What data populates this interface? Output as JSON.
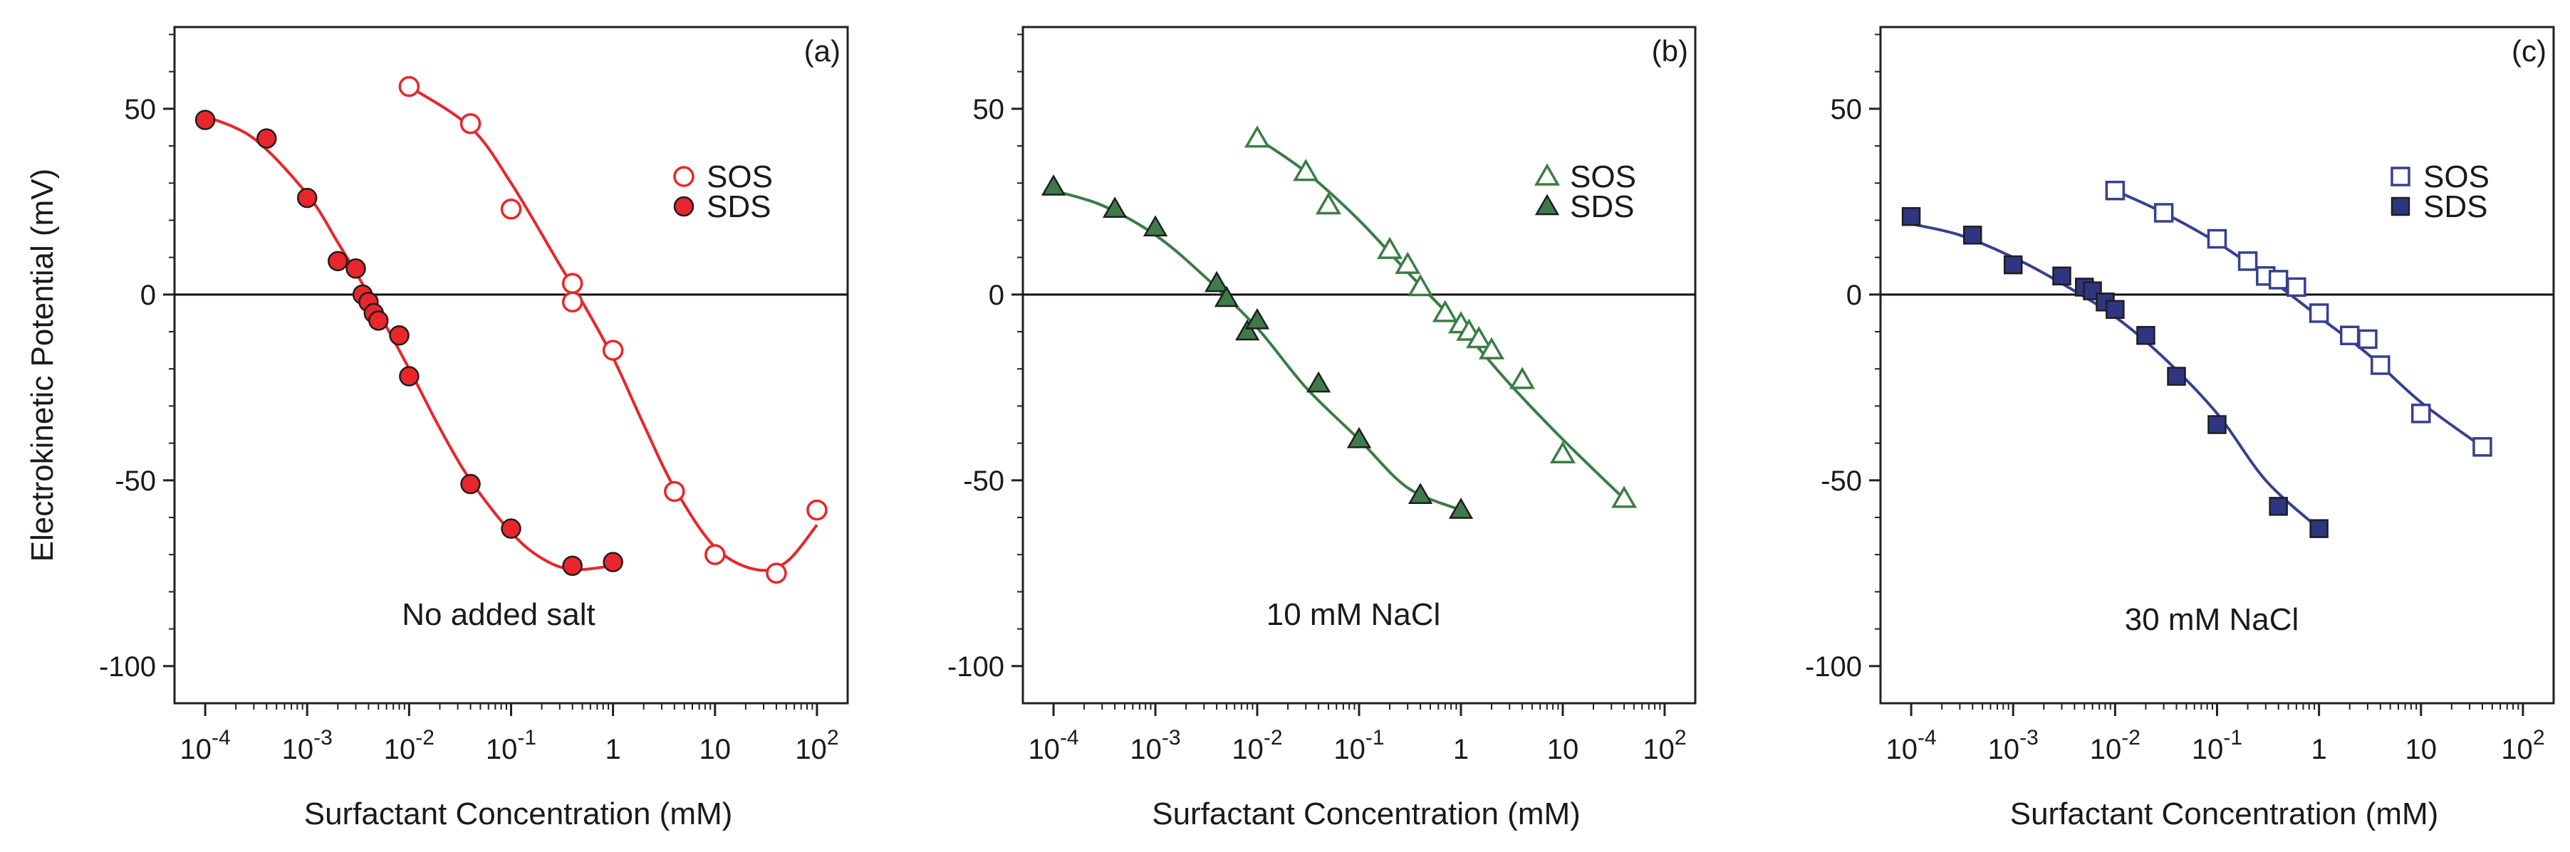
{
  "chart_data": [
    {
      "type": "scatter",
      "panel": "(a)",
      "annotation": "No added salt",
      "ylabel": "Electrokinetic Potential (mV)",
      "xlabel": "Surfactant Concentration (mM)",
      "xscale": "log",
      "xlim": [
        5e-05,
        200
      ],
      "ylim": [
        -110,
        72
      ],
      "color": "#e8262b",
      "x_ticks": [
        {
          "base": "10",
          "exp": "-4"
        },
        {
          "base": "10",
          "exp": "-3"
        },
        {
          "base": "10",
          "exp": "-2"
        },
        {
          "base": "10",
          "exp": "-1"
        },
        {
          "base": "1",
          "exp": ""
        },
        {
          "base": "10",
          "exp": ""
        },
        {
          "base": "10",
          "exp": "2"
        }
      ],
      "y_ticks": [
        "50",
        "0",
        "-50",
        "-100"
      ],
      "legend": [
        "SOS",
        "SDS"
      ],
      "series": [
        {
          "name": "SOS",
          "marker": "circle",
          "filled": false,
          "x": [
            0.01,
            0.04,
            0.1,
            0.4,
            0.4,
            1,
            4,
            10,
            40,
            100
          ],
          "y": [
            56,
            46,
            23,
            3,
            -2,
            -15,
            -53,
            -70,
            -75,
            -58
          ]
        },
        {
          "name": "SDS",
          "marker": "circle",
          "filled": true,
          "x": [
            0.0001,
            0.0004,
            0.001,
            0.002,
            0.003,
            0.0035,
            0.004,
            0.0045,
            0.005,
            0.008,
            0.01,
            0.04,
            0.1,
            0.4,
            1
          ],
          "y": [
            47,
            42,
            26,
            9,
            7,
            0,
            -2,
            -5,
            -7,
            -11,
            -22,
            -51,
            -63,
            -73,
            -72
          ]
        }
      ],
      "fits": [
        {
          "x": [
            0.01,
            0.04,
            0.1,
            0.3,
            0.5,
            1,
            2,
            4,
            10,
            25,
            50,
            100
          ],
          "y": [
            56,
            45,
            30,
            8,
            -2,
            -17,
            -35,
            -52,
            -68,
            -74,
            -72,
            -62
          ]
        },
        {
          "x": [
            0.0001,
            0.0003,
            0.001,
            0.002,
            0.004,
            0.01,
            0.02,
            0.04,
            0.1,
            0.2,
            0.4,
            1
          ],
          "y": [
            48,
            42,
            27,
            14,
            0,
            -20,
            -36,
            -50,
            -64,
            -71,
            -74,
            -73
          ]
        }
      ]
    },
    {
      "type": "scatter",
      "panel": "(b)",
      "annotation": "10 mM NaCl",
      "ylabel": "",
      "xlabel": "Surfactant Concentration (mM)",
      "xscale": "log",
      "xlim": [
        5e-05,
        200
      ],
      "ylim": [
        -110,
        72
      ],
      "color": "#3a7d44",
      "fill": "#3f7a4b",
      "x_ticks": [
        {
          "base": "10",
          "exp": "-4"
        },
        {
          "base": "10",
          "exp": "-3"
        },
        {
          "base": "10",
          "exp": "-2"
        },
        {
          "base": "10",
          "exp": "-1"
        },
        {
          "base": "1",
          "exp": ""
        },
        {
          "base": "10",
          "exp": ""
        },
        {
          "base": "10",
          "exp": "2"
        }
      ],
      "y_ticks": [
        "50",
        "0",
        "-50",
        "-100"
      ],
      "legend": [
        "SOS",
        "SDS"
      ],
      "series": [
        {
          "name": "SOS",
          "marker": "triangle",
          "filled": false,
          "x": [
            0.01,
            0.03,
            0.05,
            0.2,
            0.3,
            0.4,
            0.7,
            1,
            1.2,
            1.5,
            2,
            4,
            10,
            40
          ],
          "y": [
            42,
            33,
            24,
            12,
            8,
            2,
            -5,
            -8,
            -10,
            -12,
            -15,
            -23,
            -43,
            -55
          ]
        },
        {
          "name": "SDS",
          "marker": "triangle",
          "filled": true,
          "x": [
            0.0001,
            0.0004,
            0.001,
            0.004,
            0.005,
            0.008,
            0.01,
            0.04,
            0.1,
            0.4,
            1
          ],
          "y": [
            29,
            23,
            18,
            3,
            -1,
            -10,
            -7,
            -24,
            -39,
            -54,
            -58
          ]
        }
      ],
      "fits": [
        {
          "x": [
            0.01,
            0.03,
            0.1,
            0.3,
            1,
            3,
            10,
            40
          ],
          "y": [
            42,
            33,
            20,
            6,
            -9,
            -24,
            -39,
            -55
          ]
        },
        {
          "x": [
            0.0001,
            0.0003,
            0.001,
            0.003,
            0.01,
            0.03,
            0.1,
            0.3,
            1
          ],
          "y": [
            28,
            24,
            16,
            5,
            -9,
            -25,
            -39,
            -52,
            -58
          ]
        }
      ]
    },
    {
      "type": "scatter",
      "panel": "(c)",
      "annotation": "30 mM NaCl",
      "ylabel": "",
      "xlabel": "Surfactant Concentration (mM)",
      "xscale": "log",
      "xlim": [
        5e-05,
        200
      ],
      "ylim": [
        -110,
        72
      ],
      "color": "#35418f",
      "fill": "#2f3580",
      "x_ticks": [
        {
          "base": "10",
          "exp": "-4"
        },
        {
          "base": "10",
          "exp": "-3"
        },
        {
          "base": "10",
          "exp": "-2"
        },
        {
          "base": "10",
          "exp": "-1"
        },
        {
          "base": "1",
          "exp": ""
        },
        {
          "base": "10",
          "exp": ""
        },
        {
          "base": "10",
          "exp": "2"
        }
      ],
      "y_ticks": [
        "50",
        "0",
        "-50",
        "-100"
      ],
      "legend": [
        "SOS",
        "SDS"
      ],
      "series": [
        {
          "name": "SOS",
          "marker": "square",
          "filled": false,
          "x": [
            0.01,
            0.03,
            0.1,
            0.2,
            0.3,
            0.4,
            0.6,
            1,
            2,
            3,
            4,
            10,
            40
          ],
          "y": [
            28,
            22,
            15,
            9,
            5,
            4,
            2,
            -5,
            -11,
            -12,
            -19,
            -32,
            -41
          ]
        },
        {
          "name": "SDS",
          "marker": "square",
          "filled": true,
          "x": [
            0.0001,
            0.0004,
            0.001,
            0.003,
            0.005,
            0.006,
            0.008,
            0.01,
            0.02,
            0.04,
            0.1,
            0.4,
            1
          ],
          "y": [
            21,
            16,
            8,
            5,
            2,
            1,
            -2,
            -4,
            -11,
            -22,
            -35,
            -57,
            -63
          ]
        }
      ],
      "fits": [
        {
          "x": [
            0.01,
            0.03,
            0.1,
            0.3,
            1,
            3,
            10,
            40
          ],
          "y": [
            28,
            22,
            14,
            5,
            -6,
            -16,
            -29,
            -41
          ]
        },
        {
          "x": [
            0.0001,
            0.0003,
            0.001,
            0.003,
            0.01,
            0.03,
            0.1,
            0.3,
            1
          ],
          "y": [
            19,
            16,
            10,
            3,
            -6,
            -17,
            -32,
            -50,
            -63
          ]
        }
      ]
    }
  ]
}
